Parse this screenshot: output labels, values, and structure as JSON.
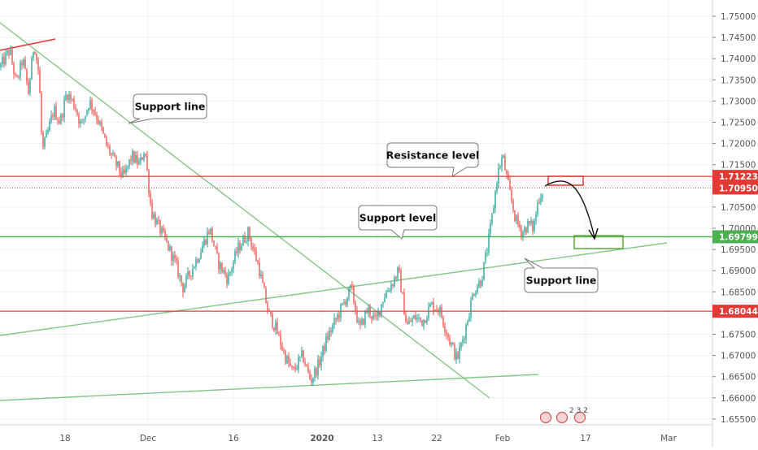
{
  "chart_data": {
    "type": "candlestick",
    "instrument_note": "",
    "x_ticks": [
      "18",
      "Dec",
      "16",
      "2020",
      "13",
      "22",
      "Feb",
      "17",
      "Mar"
    ],
    "y_ticks": [
      "1.75000",
      "1.74500",
      "1.74000",
      "1.73500",
      "1.73000",
      "1.72500",
      "1.72000",
      "1.71500",
      "1.71000",
      "1.70500",
      "1.70000",
      "1.69500",
      "1.69000",
      "1.68500",
      "1.68000",
      "1.67500",
      "1.67000",
      "1.66500",
      "1.66000",
      "1.65500"
    ],
    "ylim": [
      1.6525,
      1.7525
    ],
    "grid": true,
    "price_path": [
      [
        0,
        1.738
      ],
      [
        12,
        1.742
      ],
      [
        20,
        1.734
      ],
      [
        28,
        1.74
      ],
      [
        35,
        1.732
      ],
      [
        42,
        1.744
      ],
      [
        48,
        1.736
      ],
      [
        52,
        1.718
      ],
      [
        58,
        1.722
      ],
      [
        66,
        1.728
      ],
      [
        74,
        1.725
      ],
      [
        82,
        1.732
      ],
      [
        92,
        1.729
      ],
      [
        100,
        1.724
      ],
      [
        110,
        1.73
      ],
      [
        120,
        1.726
      ],
      [
        130,
        1.72
      ],
      [
        140,
        1.716
      ],
      [
        152,
        1.712
      ],
      [
        162,
        1.717
      ],
      [
        172,
        1.715
      ],
      [
        178,
        1.719
      ],
      [
        186,
        1.704
      ],
      [
        196,
        1.7
      ],
      [
        206,
        1.696
      ],
      [
        215,
        1.692
      ],
      [
        225,
        1.686
      ],
      [
        235,
        1.69
      ],
      [
        245,
        1.694
      ],
      [
        258,
        1.7
      ],
      [
        268,
        1.692
      ],
      [
        280,
        1.688
      ],
      [
        292,
        1.695
      ],
      [
        305,
        1.699
      ],
      [
        318,
        1.691
      ],
      [
        330,
        1.68
      ],
      [
        340,
        1.676
      ],
      [
        350,
        1.67
      ],
      [
        360,
        1.666
      ],
      [
        372,
        1.67
      ],
      [
        382,
        1.664
      ],
      [
        392,
        1.668
      ],
      [
        402,
        1.674
      ],
      [
        412,
        1.678
      ],
      [
        422,
        1.682
      ],
      [
        432,
        1.686
      ],
      [
        442,
        1.676
      ],
      [
        452,
        1.681
      ],
      [
        462,
        1.678
      ],
      [
        472,
        1.684
      ],
      [
        482,
        1.687
      ],
      [
        490,
        1.69
      ],
      [
        500,
        1.677
      ],
      [
        510,
        1.679
      ],
      [
        520,
        1.678
      ],
      [
        530,
        1.682
      ],
      [
        540,
        1.681
      ],
      [
        552,
        1.674
      ],
      [
        562,
        1.669
      ],
      [
        572,
        1.676
      ],
      [
        582,
        1.685
      ],
      [
        592,
        1.688
      ],
      [
        600,
        1.696
      ],
      [
        606,
        1.704
      ],
      [
        612,
        1.713
      ],
      [
        618,
        1.717
      ],
      [
        626,
        1.709
      ],
      [
        634,
        1.702
      ],
      [
        642,
        1.699
      ],
      [
        650,
        1.701
      ],
      [
        656,
        1.7
      ],
      [
        662,
        1.707
      ],
      [
        668,
        1.709
      ]
    ],
    "horizontal_levels": [
      {
        "price": 1.71223,
        "label": "1.71223",
        "color": "#e53935",
        "style": "solid"
      },
      {
        "price": 1.7095,
        "label": "1.70950",
        "color": "#e53935",
        "style": "dotted"
      },
      {
        "price": 1.69799,
        "label": "1.69799",
        "color": "#4caf50",
        "style": "solid"
      },
      {
        "price": 1.68044,
        "label": "1.68044",
        "color": "#e53935",
        "style": "solid"
      }
    ],
    "annotations": [
      {
        "text": "Support line"
      },
      {
        "text": "Resistance level"
      },
      {
        "text": "Support level"
      },
      {
        "text": "Support line"
      }
    ],
    "colors": {
      "up": "#26a69a",
      "down": "#ef5350",
      "trendline": "#81c784",
      "resistance": "#e53935",
      "grid": "#eef0f3",
      "axis_text": "#555555",
      "callout_border": "#7a7a7a"
    },
    "footer_text": "2 3 2"
  }
}
